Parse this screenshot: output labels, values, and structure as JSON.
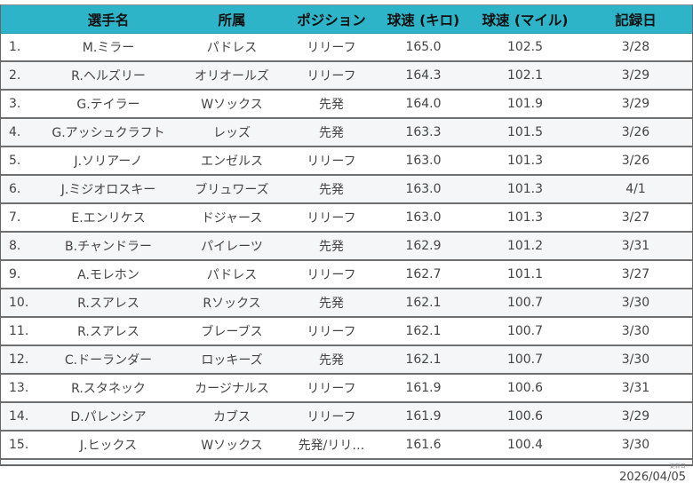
{
  "header": {
    "rank": "",
    "name": "選手名",
    "team": "所属",
    "position": "ポジション",
    "speed_kmh": "球速 (キロ)",
    "speed_mph": "球速 (マイル)",
    "date": "記録日"
  },
  "rows": [
    {
      "rank": "1.",
      "name": "M.ミラー",
      "team": "パドレス",
      "position": "リリーフ",
      "kmh": "165.0",
      "mph": "102.5",
      "date": "3/28"
    },
    {
      "rank": "2.",
      "name": "R.ヘルズリー",
      "team": "オリオールズ",
      "position": "リリーフ",
      "kmh": "164.3",
      "mph": "102.1",
      "date": "3/29"
    },
    {
      "rank": "3.",
      "name": "G.テイラー",
      "team": "Wソックス",
      "position": "先発",
      "kmh": "164.0",
      "mph": "101.9",
      "date": "3/29"
    },
    {
      "rank": "4.",
      "name": "G.アッシュクラフト",
      "team": "レッズ",
      "position": "先発",
      "kmh": "163.3",
      "mph": "101.5",
      "date": "3/26"
    },
    {
      "rank": "5.",
      "name": "J.ソリアーノ",
      "team": "エンゼルス",
      "position": "リリーフ",
      "kmh": "163.0",
      "mph": "101.3",
      "date": "3/26"
    },
    {
      "rank": "6.",
      "name": "J.ミジオロスキー",
      "team": "ブリュワーズ",
      "position": "先発",
      "kmh": "163.0",
      "mph": "101.3",
      "date": "4/1"
    },
    {
      "rank": "7.",
      "name": "E.エンリケス",
      "team": "ドジャース",
      "position": "リリーフ",
      "kmh": "163.0",
      "mph": "101.3",
      "date": "3/27"
    },
    {
      "rank": "8.",
      "name": "B.チャンドラー",
      "team": "パイレーツ",
      "position": "先発",
      "kmh": "162.9",
      "mph": "101.2",
      "date": "3/31"
    },
    {
      "rank": "9.",
      "name": "A.モレホン",
      "team": "パドレス",
      "position": "リリーフ",
      "kmh": "162.7",
      "mph": "101.1",
      "date": "3/27"
    },
    {
      "rank": "10.",
      "name": "R.スアレス",
      "team": "Rソックス",
      "position": "先発",
      "kmh": "162.1",
      "mph": "100.7",
      "date": "3/30"
    },
    {
      "rank": "11.",
      "name": "R.スアレス",
      "team": "ブレーブス",
      "position": "リリーフ",
      "kmh": "162.1",
      "mph": "100.7",
      "date": "3/30"
    },
    {
      "rank": "12.",
      "name": "C.ドーランダー",
      "team": "ロッキーズ",
      "position": "先発",
      "kmh": "162.1",
      "mph": "100.7",
      "date": "3/30"
    },
    {
      "rank": "13.",
      "name": "R.スタネック",
      "team": "カージナルス",
      "position": "リリーフ",
      "kmh": "161.9",
      "mph": "100.6",
      "date": "3/31"
    },
    {
      "rank": "14.",
      "name": "D.パレンシア",
      "team": "カブス",
      "position": "リリーフ",
      "kmh": "161.9",
      "mph": "100.6",
      "date": "3/29"
    },
    {
      "rank": "15.",
      "name": "J.ヒックス",
      "team": "Wソックス",
      "position": "先発/リリ…",
      "kmh": "161.6",
      "mph": "100.4",
      "date": "3/30"
    }
  ],
  "footer": {
    "updated_label": "更新日",
    "updated_date": "2026/04/05"
  },
  "colors": {
    "header_bg": "#2db4c8",
    "alt_row_bg": "#f5f6f8",
    "border": "#6f6f6f"
  }
}
